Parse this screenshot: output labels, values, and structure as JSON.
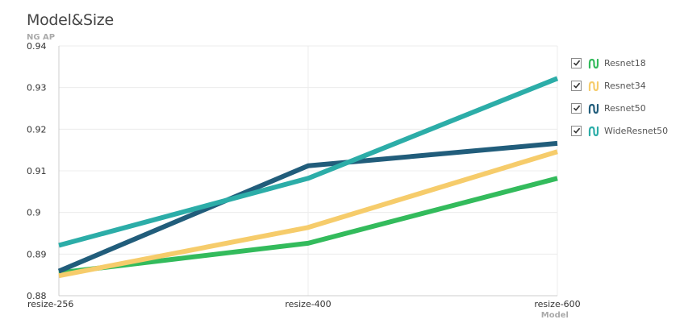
{
  "colors": {
    "background": "#ffffff",
    "grid": "#ececec",
    "axis": "#cccccc",
    "tick_text": "#333333",
    "axis_label_text": "#aaaaaa"
  },
  "chart_data": {
    "type": "line",
    "title": "Model&Size",
    "ylabel": "NG AP",
    "xlabel": "Model",
    "categories": [
      "resize-256",
      "resize-400",
      "resize-600"
    ],
    "ylim": [
      0.88,
      0.94
    ],
    "yticks": [
      "0.88",
      "0.89",
      "0.9",
      "0.91",
      "0.92",
      "0.93",
      "0.94"
    ],
    "grid": true,
    "legend_position": "right",
    "series": [
      {
        "name": "Resnet18",
        "color": "#33bb5c",
        "icon": "line-series-icon",
        "checked": true,
        "values": [
          0.8855,
          0.8926,
          0.9082
        ]
      },
      {
        "name": "Resnet34",
        "color": "#f6cc6b",
        "icon": "line-series-icon",
        "checked": true,
        "values": [
          0.8848,
          0.8964,
          0.9146
        ]
      },
      {
        "name": "Resnet50",
        "color": "#215d7b",
        "icon": "line-series-icon",
        "checked": true,
        "values": [
          0.8859,
          0.9112,
          0.9166
        ]
      },
      {
        "name": "WideResnet50",
        "color": "#2cada8",
        "icon": "line-series-icon",
        "checked": true,
        "values": [
          0.8921,
          0.9082,
          0.9322
        ]
      }
    ]
  }
}
